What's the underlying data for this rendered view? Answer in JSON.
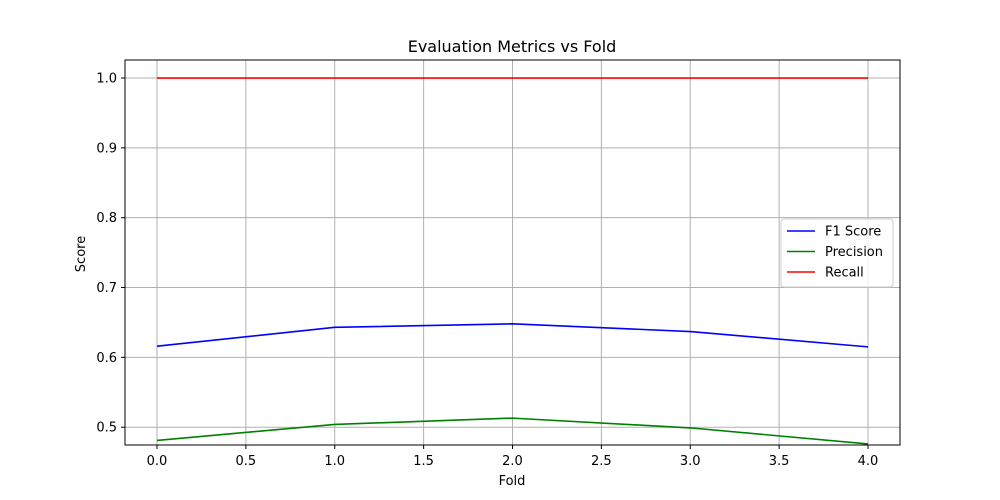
{
  "chart_data": {
    "type": "line",
    "title": "Evaluation Metrics vs Fold",
    "xlabel": "Fold",
    "ylabel": "Score",
    "xlim": [
      -0.18,
      4.18
    ],
    "ylim": [
      0.4745,
      1.0258
    ],
    "x": [
      0,
      1,
      2,
      3,
      4
    ],
    "x_ticks": [
      0.0,
      0.5,
      1.0,
      1.5,
      2.0,
      2.5,
      3.0,
      3.5,
      4.0
    ],
    "x_tick_labels": [
      "0.0",
      "0.5",
      "1.0",
      "1.5",
      "2.0",
      "2.5",
      "3.0",
      "3.5",
      "4.0"
    ],
    "y_ticks": [
      0.5,
      0.6,
      0.7,
      0.8,
      0.9,
      1.0
    ],
    "y_tick_labels": [
      "0.5",
      "0.6",
      "0.7",
      "0.8",
      "0.9",
      "1.0"
    ],
    "grid": true,
    "legend_position": "center-right",
    "series": [
      {
        "name": "F1 Score",
        "color": "#0000ff",
        "values": [
          0.616,
          0.643,
          0.648,
          0.637,
          0.615
        ]
      },
      {
        "name": "Precision",
        "color": "#008000",
        "values": [
          0.481,
          0.504,
          0.513,
          0.499,
          0.476
        ]
      },
      {
        "name": "Recall",
        "color": "#ff0000",
        "values": [
          1.0,
          1.0,
          1.0,
          1.0,
          1.0
        ]
      }
    ]
  }
}
